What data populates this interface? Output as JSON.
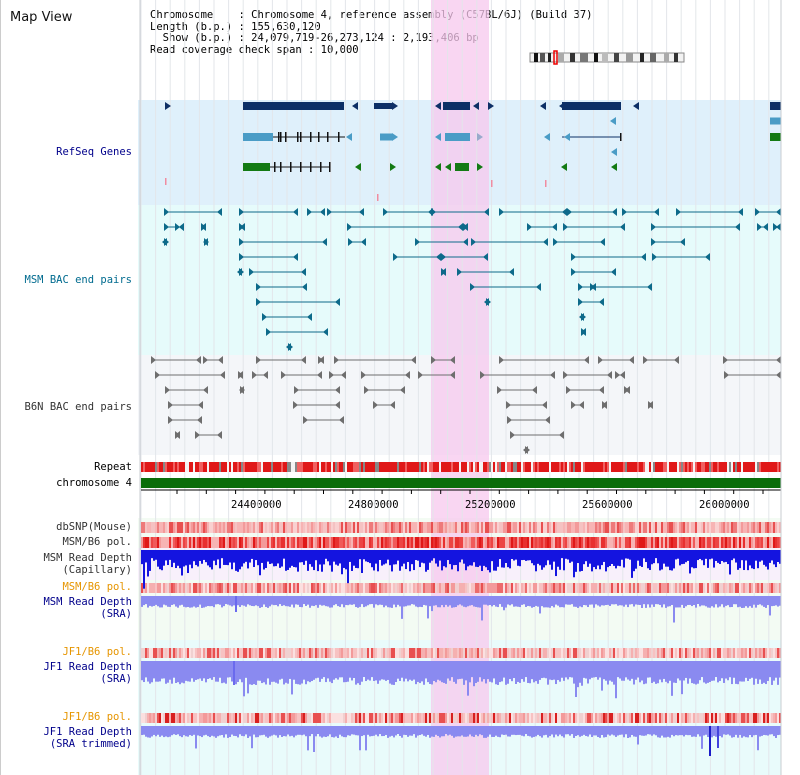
{
  "title": "Map View",
  "info": {
    "line1": "Chromosome    : Chromosome 4, reference assembly (C57BL/6J) (Build 37)",
    "line2": "Length (b.p.) : 155,630,120",
    "line3": "  Show (b.p.) : 24,079,719-26,273,124 : 2,193,406 bp",
    "line4": "Read coverage check span : 10,000"
  },
  "tracks": {
    "refseq": "RefSeq Genes",
    "msm_bac": "MSM BAC end pairs",
    "b6n_bac": "B6N BAC end pairs",
    "repeat": "Repeat",
    "chromosome": "chromosome 4",
    "dbsnp": "dbSNP(Mouse)",
    "msm_b6_pol1": "MSM/B6 pol.",
    "msm_read_depth_cap_1": "MSM Read Depth",
    "msm_read_depth_cap_2": "(Capillary)",
    "msm_b6_pol2": "MSM/B6 pol.",
    "msm_read_depth_sra_1": "MSM Read Depth",
    "msm_read_depth_sra_2": "(SRA)",
    "jf1_b6_pol1": "JF1/B6 pol.",
    "jf1_read_depth_sra_1": "JF1 Read Depth",
    "jf1_read_depth_sra_2": "(SRA)",
    "jf1_b6_pol2": "JF1/B6 pol.",
    "jf1_read_depth_trim_1": "JF1 Read Depth",
    "jf1_read_depth_trim_2": "(SRA trimmed)"
  },
  "axis_ticks": [
    "24400000",
    "24800000",
    "25200000",
    "25600000",
    "26000000"
  ],
  "colors": {
    "refseq_bg": "#dff0fb",
    "msm_bg": "#e6fbfb",
    "b6n_bg": "#f4f6f9",
    "highlight": "#f7c8ee",
    "gene_dark": "#0d2f66",
    "gene_mid": "#4a9cc6",
    "gene_green": "#137a13",
    "chrom_green": "#0a6d0a",
    "depth_blue": "#1414e0",
    "depth_light": "#8a8af0"
  }
}
